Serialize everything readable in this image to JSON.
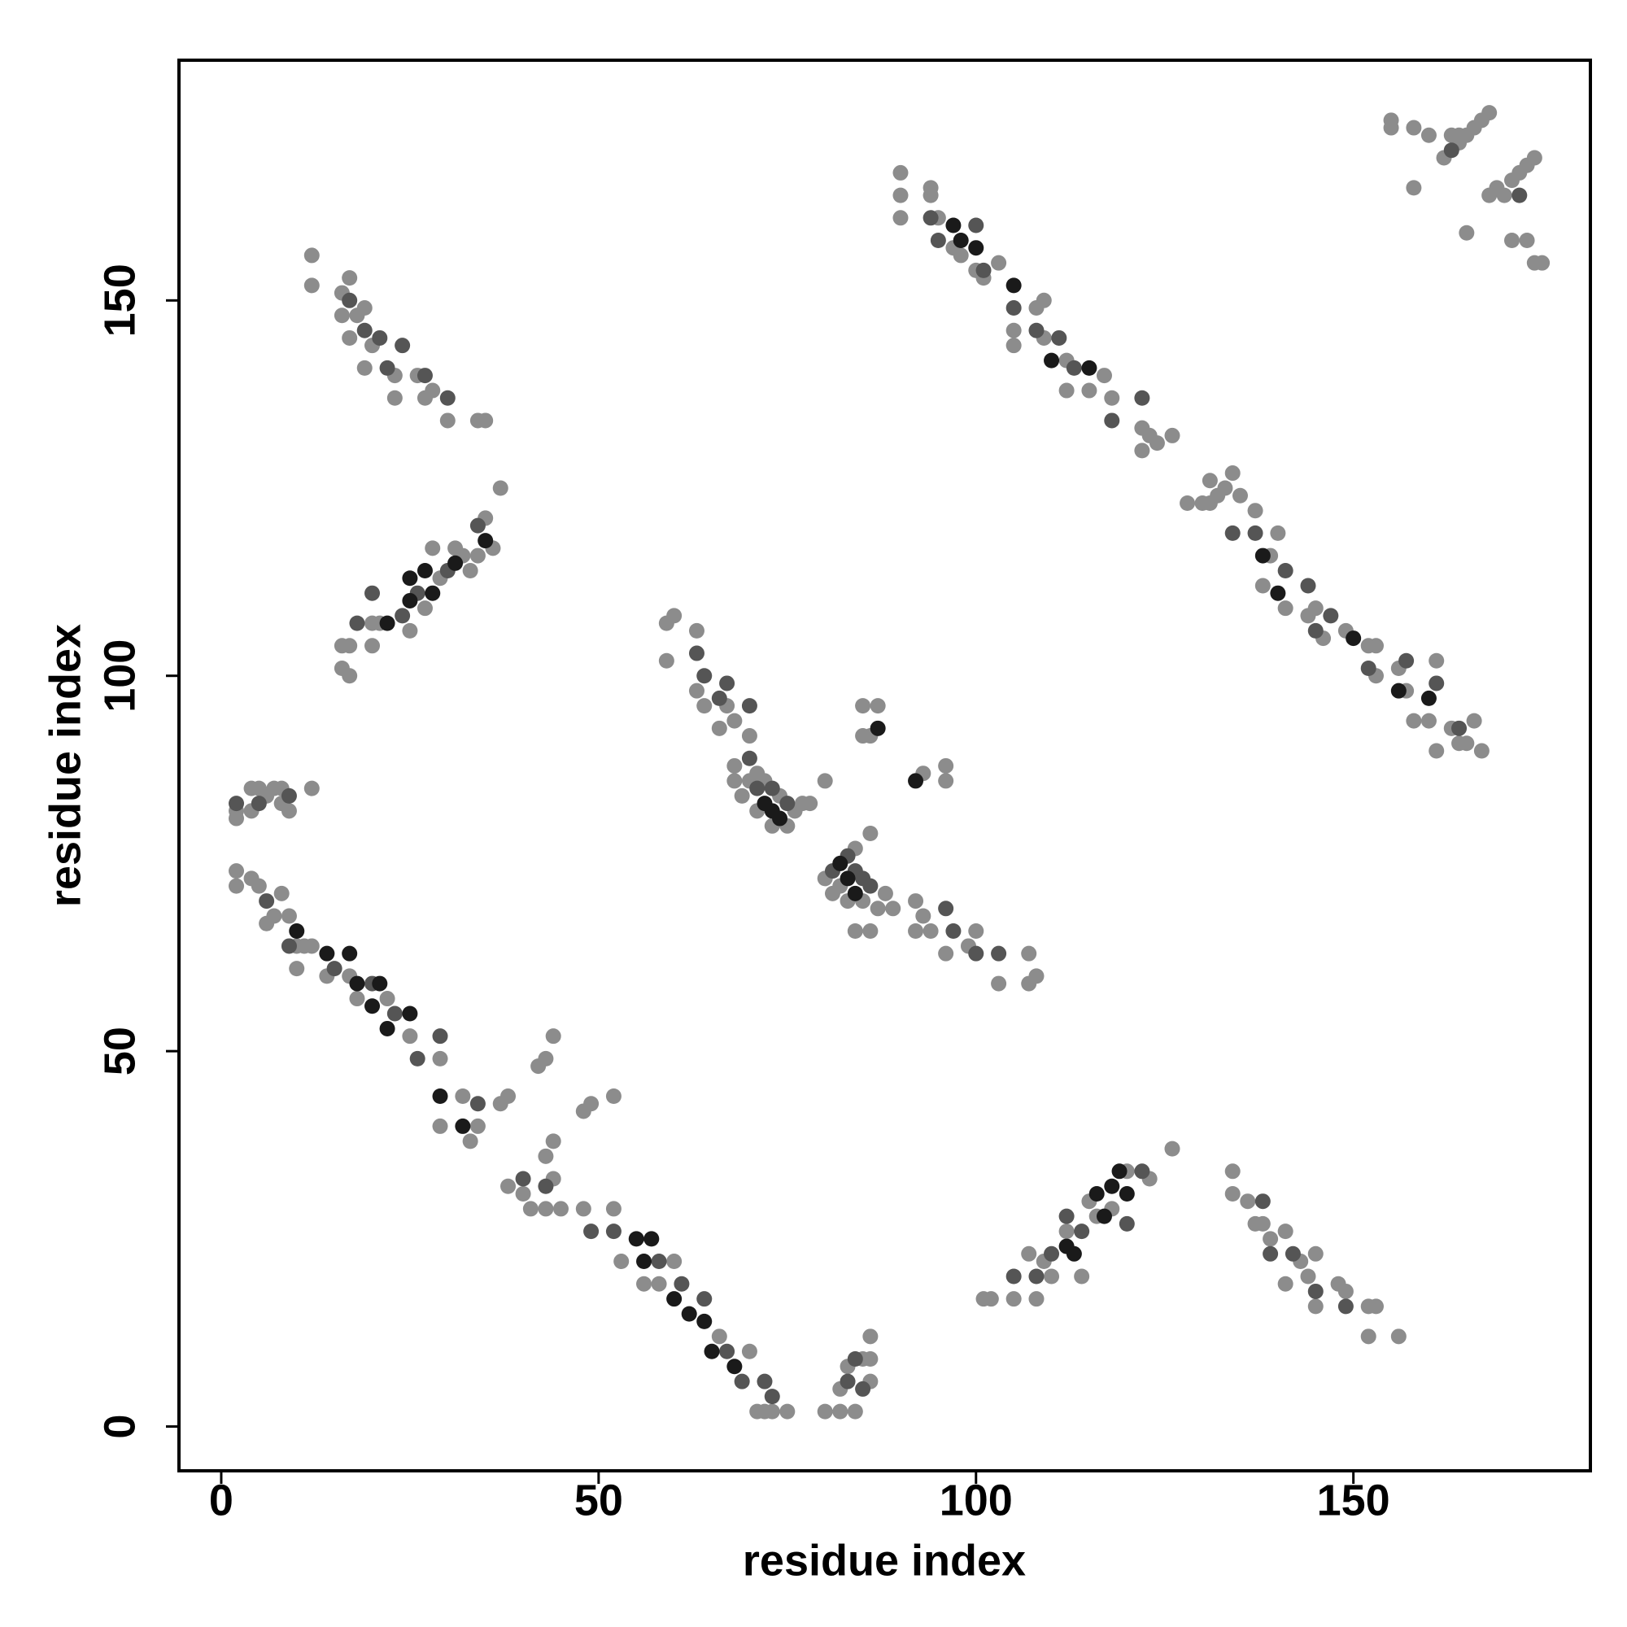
{
  "chart_data": {
    "type": "scatter",
    "x_label": "residue index",
    "y_label": "residue index",
    "xlim": [
      -5.6,
      181.4
    ],
    "ylim": [
      -5.9,
      182
    ],
    "xticks": [
      0,
      50,
      100,
      150
    ],
    "yticks": [
      0,
      50,
      100,
      150
    ],
    "series": [
      {
        "color": "#8c8c8c",
        "x": [
          2,
          2,
          4,
          4,
          5,
          6,
          7,
          8,
          8,
          9,
          12,
          2,
          2,
          4,
          5,
          6,
          7,
          8,
          9,
          10,
          11,
          12,
          10,
          14,
          17,
          18,
          22,
          25,
          29,
          29,
          32,
          33,
          34,
          37,
          38,
          38,
          40,
          41,
          43,
          44,
          45,
          48,
          52,
          53,
          56,
          58,
          60,
          66,
          70,
          71,
          73,
          75,
          72,
          43,
          44,
          42,
          43,
          44,
          48,
          49,
          52,
          80,
          82,
          84,
          82,
          85,
          86,
          86,
          86,
          83,
          101,
          102,
          105,
          107,
          108,
          109,
          110,
          112,
          114,
          115,
          116,
          118,
          120,
          123,
          126,
          134,
          134,
          136,
          137,
          138,
          139,
          141,
          141,
          143,
          144,
          145,
          145,
          148,
          149,
          152,
          152,
          153,
          156,
          12,
          12,
          16,
          17,
          16,
          17,
          18,
          19,
          20,
          19,
          23,
          23,
          26,
          27,
          28,
          30,
          34,
          35,
          16,
          17,
          17,
          16,
          20,
          20,
          21,
          25,
          27,
          28,
          29,
          31,
          32,
          33,
          34,
          35,
          36,
          37,
          59,
          60,
          59,
          63,
          63,
          64,
          66,
          67,
          68,
          70,
          68,
          68,
          69,
          70,
          71,
          72,
          74,
          75,
          76,
          77,
          78,
          80,
          73,
          71,
          80,
          81,
          82,
          83,
          84,
          85,
          86,
          87,
          88,
          89,
          84,
          86,
          92,
          92,
          93,
          94,
          96,
          99,
          100,
          103,
          107,
          107,
          108,
          85,
          87,
          86,
          85,
          93,
          96,
          96,
          90,
          90,
          90,
          94,
          94,
          95,
          97,
          98,
          100,
          101,
          103,
          105,
          105,
          108,
          109,
          109,
          112,
          112,
          115,
          117,
          118,
          122,
          122,
          123,
          124,
          126,
          128,
          130,
          131,
          131,
          132,
          133,
          134,
          135,
          137,
          138,
          139,
          140,
          141,
          144,
          145,
          146,
          149,
          152,
          153,
          153,
          156,
          157,
          158,
          160,
          161,
          161,
          163,
          164,
          165,
          166,
          167,
          155,
          155,
          158,
          160,
          163,
          164,
          165,
          166,
          167,
          168,
          162,
          164,
          158,
          165,
          168,
          169,
          170,
          171,
          172,
          173,
          174,
          171,
          173,
          174,
          175
        ],
        "values": [
          81,
          82,
          82,
          85,
          85,
          84,
          85,
          83,
          85,
          82,
          85,
          72,
          74,
          73,
          72,
          67,
          68,
          71,
          68,
          64,
          64,
          64,
          61,
          60,
          60,
          57,
          57,
          52,
          49,
          40,
          44,
          38,
          40,
          43,
          44,
          32,
          31,
          29,
          29,
          33,
          29,
          29,
          29,
          22,
          19,
          19,
          22,
          12,
          10,
          2,
          2,
          2,
          2,
          36,
          38,
          48,
          49,
          52,
          42,
          43,
          44,
          2,
          2,
          2,
          5,
          9,
          9,
          12,
          6,
          8,
          17,
          17,
          17,
          23,
          17,
          22,
          20,
          26,
          20,
          30,
          28,
          29,
          34,
          33,
          37,
          34,
          31,
          30,
          27,
          27,
          25,
          26,
          19,
          22,
          20,
          16,
          23,
          19,
          18,
          16,
          12,
          16,
          12,
          156,
          152,
          151,
          153,
          148,
          145,
          148,
          149,
          144,
          141,
          140,
          137,
          140,
          137,
          138,
          134,
          134,
          134,
          101,
          100,
          104,
          104,
          104,
          107,
          107,
          106,
          109,
          117,
          113,
          117,
          116,
          114,
          116,
          121,
          117,
          125,
          107,
          108,
          102,
          106,
          98,
          96,
          93,
          96,
          94,
          92,
          86,
          88,
          84,
          86,
          87,
          86,
          84,
          80,
          82,
          83,
          83,
          86,
          80,
          82,
          73,
          71,
          72,
          70,
          77,
          70,
          79,
          69,
          71,
          69,
          66,
          66,
          70,
          66,
          68,
          66,
          63,
          64,
          66,
          59,
          63,
          59,
          60,
          96,
          96,
          92,
          92,
          87,
          86,
          88,
          167,
          164,
          161,
          164,
          165,
          161,
          157,
          156,
          154,
          153,
          155,
          146,
          144,
          149,
          150,
          145,
          138,
          142,
          138,
          140,
          137,
          133,
          130,
          132,
          131,
          132,
          123,
          123,
          123,
          126,
          124,
          125,
          127,
          124,
          122,
          112,
          116,
          119,
          109,
          108,
          109,
          105,
          106,
          104,
          104,
          100,
          101,
          98,
          94,
          94,
          102,
          90,
          93,
          91,
          91,
          94,
          90,
          174,
          173,
          173,
          172,
          172,
          172,
          172,
          173,
          174,
          175,
          169,
          171,
          165,
          159,
          164,
          165,
          164,
          166,
          167,
          168,
          169,
          158,
          158,
          155,
          155
        ]
      },
      {
        "color": "#555555",
        "x": [
          2,
          5,
          9,
          6,
          9,
          15,
          20,
          23,
          26,
          29,
          34,
          40,
          43,
          49,
          52,
          58,
          61,
          64,
          67,
          69,
          72,
          73,
          83,
          84,
          85,
          105,
          108,
          110,
          112,
          114,
          120,
          122,
          138,
          139,
          142,
          145,
          149,
          17,
          19,
          21,
          22,
          24,
          27,
          30,
          18,
          20,
          24,
          26,
          30,
          34,
          63,
          64,
          66,
          67,
          70,
          70,
          71,
          73,
          75,
          81,
          83,
          84,
          85,
          86,
          96,
          97,
          100,
          103,
          94,
          95,
          100,
          101,
          105,
          108,
          111,
          113,
          118,
          122,
          134,
          137,
          141,
          144,
          145,
          147,
          152,
          157,
          161,
          164,
          163,
          172
        ],
        "values": [
          83,
          83,
          84,
          70,
          64,
          61,
          59,
          55,
          49,
          52,
          43,
          33,
          32,
          26,
          26,
          22,
          19,
          17,
          10,
          6,
          6,
          4,
          6,
          9,
          5,
          20,
          20,
          23,
          28,
          26,
          27,
          34,
          30,
          23,
          23,
          18,
          16,
          150,
          146,
          145,
          141,
          144,
          140,
          137,
          107,
          111,
          108,
          111,
          114,
          120,
          103,
          100,
          97,
          99,
          96,
          89,
          85,
          85,
          83,
          74,
          76,
          74,
          73,
          72,
          69,
          66,
          63,
          63,
          161,
          158,
          160,
          154,
          149,
          146,
          145,
          141,
          134,
          137,
          119,
          119,
          114,
          112,
          106,
          108,
          101,
          102,
          99,
          93,
          170,
          164
        ]
      },
      {
        "color": "#1a1a1a",
        "x": [
          10,
          14,
          17,
          18,
          20,
          21,
          22,
          25,
          29,
          32,
          55,
          56,
          57,
          60,
          62,
          64,
          65,
          68,
          25,
          25,
          27,
          28,
          31,
          22,
          35,
          116,
          117,
          118,
          119,
          120,
          112,
          113,
          98,
          100,
          97,
          105,
          110,
          115,
          138,
          140,
          150,
          156,
          160,
          72,
          73,
          74,
          82,
          83,
          84,
          87,
          92
        ],
        "values": [
          66,
          63,
          63,
          59,
          56,
          59,
          53,
          55,
          44,
          40,
          25,
          22,
          25,
          17,
          15,
          14,
          10,
          8,
          110,
          113,
          114,
          111,
          115,
          107,
          118,
          31,
          28,
          32,
          34,
          31,
          24,
          23,
          158,
          157,
          160,
          152,
          142,
          141,
          116,
          111,
          105,
          98,
          97,
          83,
          82,
          81,
          75,
          73,
          71,
          93,
          86
        ]
      }
    ]
  }
}
